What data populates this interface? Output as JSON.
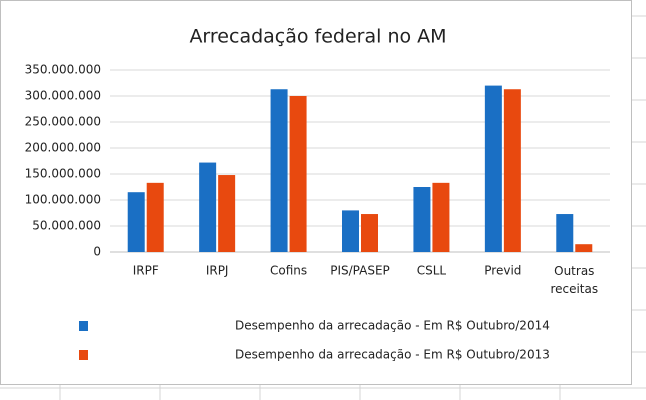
{
  "chart_data": {
    "type": "bar",
    "title": "Arrecadação federal no AM",
    "categories": [
      "IRPF",
      "IRPJ",
      "Cofins",
      "PIS/PASEP",
      "CSLL",
      "Previd",
      "Outras receitas"
    ],
    "series": [
      {
        "name": "Desempenho da arrecadação -  Em R$ Outubro/2014",
        "color": "#1a6fc4",
        "values": [
          115000000,
          172000000,
          313000000,
          80000000,
          125000000,
          320000000,
          73000000
        ]
      },
      {
        "name": "Desempenho da arrecadação -  Em R$ Outubro/2013",
        "color": "#e8490f",
        "values": [
          133000000,
          148000000,
          300000000,
          73000000,
          133000000,
          313000000,
          15000000
        ]
      }
    ],
    "ylim": [
      0,
      350000000
    ],
    "yticks": [
      0,
      {
        "value": 50000000,
        "label": "50.000.000"
      },
      {
        "value": 100000000,
        "label": "100.000.000"
      },
      {
        "value": 150000000,
        "label": "150.000.000"
      },
      {
        "value": 200000000,
        "label": "200.000.000"
      },
      {
        "value": 250000000,
        "label": "250.000.000"
      },
      {
        "value": 300000000,
        "label": "300.000.000"
      },
      {
        "value": 350000000,
        "label": "350.000.000"
      }
    ],
    "grid": true
  }
}
